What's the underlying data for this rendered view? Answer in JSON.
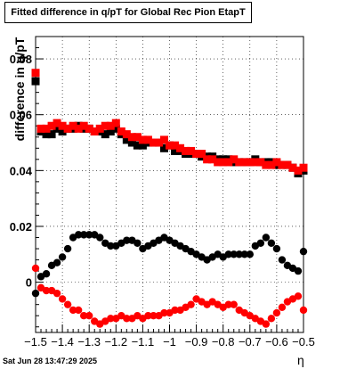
{
  "chart_data": {
    "type": "scatter",
    "title": "Fitted difference in q/pT for Global Rec Pion EtapT",
    "xlabel": "η",
    "ylabel": "difference in q/pT",
    "xlim": [
      -1.5,
      -0.5
    ],
    "ylim": [
      -0.018,
      0.088
    ],
    "x_ticks": [
      {
        "value": -1.5,
        "label": "−1.5"
      },
      {
        "value": -1.4,
        "label": "−1.4"
      },
      {
        "value": -1.3,
        "label": "−1.3"
      },
      {
        "value": -1.2,
        "label": "−1.2"
      },
      {
        "value": -1.1,
        "label": "−1.1"
      },
      {
        "value": -1.0,
        "label": "−1"
      },
      {
        "value": -0.9,
        "label": "−0.9"
      },
      {
        "value": -0.8,
        "label": "−0.8"
      },
      {
        "value": -0.7,
        "label": "−0.7"
      },
      {
        "value": -0.6,
        "label": "−0.6"
      },
      {
        "value": -0.5,
        "label": "−0.5"
      }
    ],
    "y_ticks": [
      {
        "value": 0,
        "label": "0"
      },
      {
        "value": 0.02,
        "label": "0.02"
      },
      {
        "value": 0.04,
        "label": "0.04"
      },
      {
        "value": 0.06,
        "label": "0.06"
      },
      {
        "value": 0.08,
        "label": "0.08"
      }
    ],
    "grid": true,
    "x": [
      -1.5,
      -1.48,
      -1.46,
      -1.44,
      -1.42,
      -1.4,
      -1.38,
      -1.36,
      -1.34,
      -1.32,
      -1.3,
      -1.28,
      -1.26,
      -1.24,
      -1.22,
      -1.2,
      -1.18,
      -1.16,
      -1.14,
      -1.12,
      -1.1,
      -1.08,
      -1.06,
      -1.04,
      -1.02,
      -1.0,
      -0.98,
      -0.96,
      -0.94,
      -0.92,
      -0.9,
      -0.88,
      -0.86,
      -0.84,
      -0.82,
      -0.8,
      -0.78,
      -0.76,
      -0.74,
      -0.72,
      -0.7,
      -0.68,
      -0.66,
      -0.64,
      -0.62,
      -0.6,
      -0.58,
      -0.56,
      -0.54,
      -0.52,
      -0.5
    ],
    "series": [
      {
        "marker": "square",
        "color": "#000000",
        "values": [
          0.072,
          0.054,
          0.053,
          0.053,
          0.055,
          0.054,
          0.055,
          0.055,
          0.056,
          0.055,
          0.055,
          0.054,
          0.054,
          0.053,
          0.054,
          0.055,
          0.053,
          0.051,
          0.05,
          0.049,
          0.049,
          0.05,
          0.05,
          0.05,
          0.048,
          0.049,
          0.047,
          0.047,
          0.046,
          0.046,
          0.046,
          0.045,
          0.045,
          0.045,
          0.044,
          0.044,
          0.044,
          0.043,
          0.043,
          0.043,
          0.043,
          0.044,
          0.043,
          0.043,
          0.043,
          0.042,
          0.042,
          0.042,
          0.041,
          0.039,
          0.04
        ]
      },
      {
        "marker": "square",
        "color": "#ff0000",
        "values": [
          0.075,
          0.055,
          0.055,
          0.056,
          0.057,
          0.056,
          0.055,
          0.056,
          0.055,
          0.056,
          0.055,
          0.054,
          0.055,
          0.056,
          0.056,
          0.057,
          0.054,
          0.053,
          0.052,
          0.052,
          0.051,
          0.051,
          0.05,
          0.05,
          0.051,
          0.049,
          0.049,
          0.048,
          0.047,
          0.047,
          0.046,
          0.046,
          0.044,
          0.044,
          0.043,
          0.043,
          0.043,
          0.044,
          0.043,
          0.043,
          0.043,
          0.043,
          0.043,
          0.042,
          0.042,
          0.043,
          0.042,
          0.042,
          0.041,
          0.04,
          0.041
        ]
      },
      {
        "marker": "circle",
        "color": "#000000",
        "values": [
          -0.004,
          0.002,
          0.003,
          0.006,
          0.007,
          0.009,
          0.012,
          0.016,
          0.017,
          0.017,
          0.017,
          0.017,
          0.016,
          0.014,
          0.013,
          0.013,
          0.014,
          0.015,
          0.015,
          0.014,
          0.012,
          0.013,
          0.014,
          0.015,
          0.016,
          0.015,
          0.014,
          0.013,
          0.012,
          0.011,
          0.01,
          0.009,
          0.008,
          0.009,
          0.01,
          0.009,
          0.01,
          0.01,
          0.01,
          0.01,
          0.01,
          0.013,
          0.014,
          0.016,
          0.014,
          0.012,
          0.008,
          0.006,
          0.005,
          0.004,
          0.011
        ]
      },
      {
        "marker": "circle",
        "color": "#ff0000",
        "values": [
          0.005,
          -0.002,
          -0.003,
          -0.003,
          -0.004,
          -0.006,
          -0.008,
          -0.01,
          -0.01,
          -0.012,
          -0.012,
          -0.014,
          -0.015,
          -0.014,
          -0.013,
          -0.013,
          -0.012,
          -0.013,
          -0.013,
          -0.012,
          -0.013,
          -0.012,
          -0.012,
          -0.012,
          -0.011,
          -0.011,
          -0.01,
          -0.01,
          -0.009,
          -0.008,
          -0.006,
          -0.007,
          -0.008,
          -0.007,
          -0.008,
          -0.009,
          -0.008,
          -0.008,
          -0.01,
          -0.011,
          -0.012,
          -0.013,
          -0.014,
          -0.015,
          -0.013,
          -0.011,
          -0.009,
          -0.007,
          -0.006,
          -0.005,
          -0.01
        ]
      }
    ]
  },
  "footer": {
    "timestamp": "Sat Jun 28 13:47:29 2025"
  }
}
